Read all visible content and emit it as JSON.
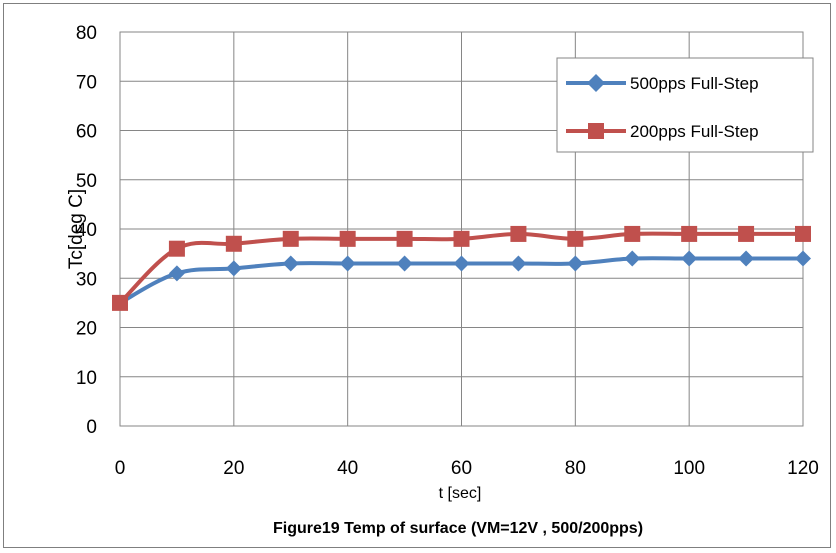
{
  "chart_data": {
    "type": "line",
    "title": "Figure19 Temp of surface  (VM=12V , 500/200pps)",
    "xlabel": "t [sec]",
    "ylabel": "Tc[deg C]",
    "xlim": [
      0,
      120
    ],
    "ylim": [
      0,
      80
    ],
    "x_ticks": [
      0,
      20,
      40,
      60,
      80,
      100,
      120
    ],
    "y_ticks": [
      0,
      10,
      20,
      30,
      40,
      50,
      60,
      70,
      80
    ],
    "grid": true,
    "legend_position": "top-right",
    "x": [
      0,
      10,
      20,
      30,
      40,
      50,
      60,
      70,
      80,
      90,
      100,
      110,
      120
    ],
    "series": [
      {
        "name": "500pps Full-Step",
        "color": "#4f81bd",
        "marker": "diamond",
        "values": [
          25,
          31,
          32,
          33,
          33,
          33,
          33,
          33,
          33,
          34,
          34,
          34,
          34
        ]
      },
      {
        "name": "200pps Full-Step",
        "color": "#c0504d",
        "marker": "square",
        "values": [
          25,
          36,
          37,
          38,
          38,
          38,
          38,
          39,
          38,
          39,
          39,
          39,
          39
        ]
      }
    ]
  }
}
